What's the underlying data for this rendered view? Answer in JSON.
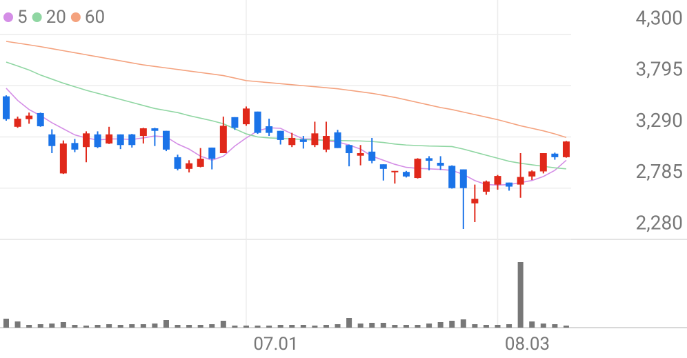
{
  "chart_data": {
    "type": "candlestick",
    "categories": [
      null,
      null,
      null,
      null,
      null,
      null,
      null,
      null,
      null,
      null,
      null,
      null,
      null,
      null,
      null,
      null,
      null,
      null,
      null,
      null,
      null,
      "07.01",
      null,
      null,
      null,
      null,
      null,
      null,
      null,
      null,
      null,
      null,
      null,
      null,
      null,
      null,
      null,
      null,
      null,
      null,
      null,
      null,
      null,
      "08.03",
      null,
      null,
      null,
      null,
      null,
      null
    ],
    "open": [
      3690,
      3390,
      3465,
      3525,
      3315,
      2930,
      3230,
      3190,
      3315,
      3225,
      3315,
      3315,
      3300,
      3375,
      3350,
      3090,
      2975,
      2995,
      3185,
      3130,
      3485,
      3415,
      3540,
      3395,
      3350,
      3210,
      3265,
      3210,
      3165,
      3335,
      3210,
      3105,
      3145,
      3020,
      2945,
      2945,
      2885,
      3080,
      3035,
      3005,
      2970,
      2635,
      2750,
      2820,
      2840,
      2820,
      2900,
      2950,
      3125,
      3090
    ],
    "high": [
      3700,
      3490,
      3530,
      3530,
      3365,
      3255,
      3270,
      3345,
      3345,
      3390,
      3315,
      3320,
      3380,
      3380,
      3350,
      3115,
      3060,
      3180,
      3185,
      3490,
      3485,
      3590,
      3540,
      3470,
      3350,
      3330,
      3300,
      3440,
      3440,
      3360,
      3215,
      3210,
      3280,
      3020,
      2955,
      2955,
      3080,
      3100,
      3100,
      3010,
      2970,
      2820,
      2860,
      2915,
      2840,
      3130,
      2960,
      3130,
      3135,
      3250
    ],
    "low": [
      3450,
      3380,
      3420,
      3390,
      3130,
      2925,
      3140,
      3040,
      3180,
      3220,
      3170,
      3185,
      3225,
      3200,
      3150,
      2960,
      2940,
      2990,
      2970,
      3130,
      3360,
      3400,
      3320,
      3300,
      3215,
      3190,
      3175,
      3190,
      3140,
      3180,
      3000,
      3010,
      3030,
      2860,
      2830,
      2890,
      2880,
      2960,
      2965,
      2780,
      2382,
      2450,
      2720,
      2770,
      2760,
      2690,
      2865,
      2930,
      3065,
      3085
    ],
    "close": [
      3465,
      3470,
      3500,
      3395,
      3200,
      3225,
      3165,
      3325,
      3190,
      3315,
      3210,
      3210,
      3375,
      3350,
      3165,
      2975,
      3030,
      3075,
      3075,
      3400,
      3380,
      3570,
      3330,
      3330,
      3260,
      3280,
      3240,
      3325,
      3300,
      3180,
      3130,
      3130,
      3055,
      2975,
      2955,
      2900,
      3075,
      3055,
      3005,
      2785,
      2785,
      2680,
      2850,
      2905,
      2800,
      2895,
      2950,
      3130,
      3090,
      3245
    ],
    "up_color": "#e0281a",
    "down_color": "#1a73e8",
    "series": [
      {
        "name": "5",
        "color": "#d48ee6",
        "values": [
          3770,
          3650,
          3560,
          3500,
          3430,
          3370,
          3310,
          3280,
          3260,
          3270,
          3270,
          3265,
          3280,
          3300,
          3290,
          3220,
          3170,
          3100,
          3060,
          3100,
          3200,
          3280,
          3350,
          3380,
          3375,
          3320,
          3270,
          3270,
          3250,
          3240,
          3210,
          3170,
          3100,
          3060,
          3020,
          2990,
          2980,
          2975,
          2970,
          2960,
          2920,
          2860,
          2820,
          2815,
          2820,
          2840,
          2860,
          2900,
          2960,
          3060
        ]
      },
      {
        "name": "20",
        "color": "#8fd6a2",
        "values": [
          4028,
          3990,
          3950,
          3900,
          3860,
          3820,
          3785,
          3750,
          3720,
          3690,
          3660,
          3630,
          3600,
          3570,
          3550,
          3530,
          3500,
          3475,
          3450,
          3420,
          3370,
          3320,
          3290,
          3280,
          3275,
          3270,
          3265,
          3260,
          3258,
          3255,
          3252,
          3250,
          3245,
          3235,
          3220,
          3210,
          3205,
          3200,
          3198,
          3195,
          3170,
          3140,
          3110,
          3080,
          3050,
          3030,
          3015,
          3000,
          2985,
          2975
        ]
      },
      {
        "name": "60",
        "color": "#f4a27e",
        "values": [
          4232,
          4215,
          4198,
          4180,
          4160,
          4140,
          4120,
          4100,
          4080,
          4060,
          4040,
          4020,
          4000,
          3985,
          3970,
          3955,
          3940,
          3925,
          3910,
          3895,
          3870,
          3845,
          3835,
          3825,
          3815,
          3805,
          3795,
          3785,
          3775,
          3765,
          3750,
          3735,
          3720,
          3700,
          3680,
          3655,
          3630,
          3605,
          3580,
          3560,
          3535,
          3510,
          3485,
          3460,
          3430,
          3400,
          3375,
          3350,
          3320,
          3285
        ]
      }
    ],
    "volume": [
      13,
      9,
      4,
      5,
      6,
      8,
      4,
      3,
      4,
      5,
      4,
      5,
      5,
      6,
      11,
      4,
      4,
      4,
      5,
      10,
      3,
      3,
      3,
      3,
      4,
      4,
      4,
      3,
      4,
      5,
      14,
      6,
      7,
      7,
      4,
      4,
      4,
      6,
      8,
      10,
      12,
      5,
      4,
      4,
      5,
      95,
      9,
      6,
      5,
      3
    ],
    "volume_color": "#777777",
    "volume_ylim": [
      0,
      100
    ],
    "ylim": [
      2280,
      4640
    ],
    "yticks": [
      {
        "value": 4300,
        "label": "4,300"
      },
      {
        "value": 3795,
        "label": "3,795"
      },
      {
        "value": 3290,
        "label": "3,290"
      },
      {
        "value": 2785,
        "label": "2,785"
      },
      {
        "value": 2280,
        "label": "2,280"
      }
    ],
    "grid": true
  }
}
